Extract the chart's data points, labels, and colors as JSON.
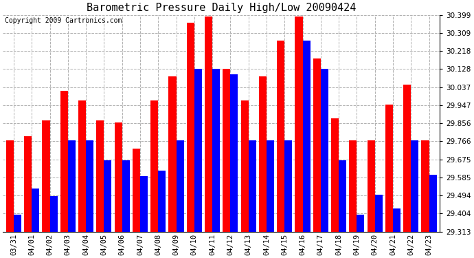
{
  "title": "Barometric Pressure Daily High/Low 20090424",
  "copyright": "Copyright 2009 Cartronics.com",
  "dates": [
    "03/31",
    "04/01",
    "04/02",
    "04/03",
    "04/04",
    "04/05",
    "04/06",
    "04/07",
    "04/08",
    "04/09",
    "04/10",
    "04/11",
    "04/12",
    "04/13",
    "04/14",
    "04/15",
    "04/16",
    "04/17",
    "04/18",
    "04/19",
    "04/20",
    "04/21",
    "04/22",
    "04/23"
  ],
  "highs": [
    29.77,
    29.79,
    29.87,
    30.02,
    29.97,
    29.87,
    29.86,
    29.73,
    29.97,
    30.09,
    30.36,
    30.39,
    30.13,
    29.97,
    30.09,
    30.27,
    30.39,
    30.18,
    29.88,
    29.77,
    29.77,
    29.95,
    30.05,
    29.77
  ],
  "lows": [
    29.4,
    29.53,
    29.49,
    29.77,
    29.77,
    29.67,
    29.67,
    29.59,
    29.62,
    29.77,
    30.13,
    30.13,
    30.1,
    29.77,
    29.77,
    29.77,
    30.27,
    30.13,
    29.67,
    29.4,
    29.5,
    29.43,
    29.77,
    29.6
  ],
  "high_color": "#ff0000",
  "low_color": "#0000ff",
  "bg_color": "#ffffff",
  "grid_color": "#b0b0b0",
  "ylim_min": 29.313,
  "ylim_max": 30.399,
  "yticks": [
    29.313,
    29.404,
    29.494,
    29.585,
    29.675,
    29.766,
    29.856,
    29.947,
    30.037,
    30.128,
    30.218,
    30.309,
    30.399
  ],
  "title_fontsize": 11,
  "copyright_fontsize": 7,
  "tick_fontsize": 7.5,
  "ytick_fontsize": 7.5
}
